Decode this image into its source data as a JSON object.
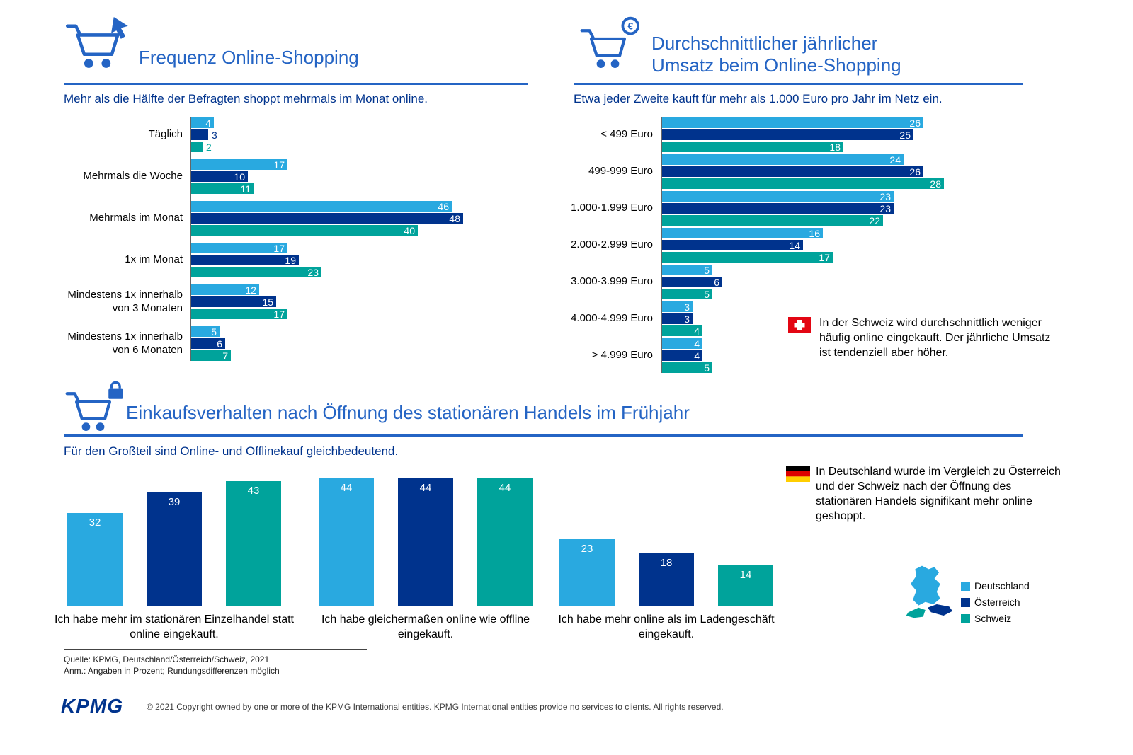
{
  "brand": {
    "logo": "KPMG",
    "copyright": "© 2021 Copyright owned by one or more of the KPMG International entities. KPMG International entities provide no services to clients. All rights reserved."
  },
  "colors": {
    "accent_blue": "#2464C4",
    "deutschland": "#29A9E0",
    "oesterreich": "#00338D",
    "schweiz": "#00A39B"
  },
  "icons": {
    "frequency": "cart-click-icon",
    "revenue": "cart-euro-icon",
    "behavior": "cart-lock-icon",
    "swiss_flag": "swiss-flag-icon",
    "german_flag": "german-flag-icon",
    "map": "dach-map"
  },
  "legend": {
    "items": [
      {
        "label": "Deutschland",
        "color": "#29A9E0"
      },
      {
        "label": "Österreich",
        "color": "#00338D"
      },
      {
        "label": "Schweiz",
        "color": "#00A39B"
      }
    ]
  },
  "sections": {
    "frequency": {
      "title": "Frequenz Online-Shopping",
      "subtitle": "Mehr als die Hälfte der Befragten shoppt mehrmals im Monat online."
    },
    "revenue": {
      "title_line1": "Durchschnittlicher jährlicher",
      "title_line2": "Umsatz beim Online-Shopping",
      "subtitle": "Etwa jeder Zweite kauft für mehr als 1.000 Euro pro Jahr im Netz ein.",
      "note": "In der Schweiz wird durchschnittlich weniger häufig online eingekauft. Der jährliche Umsatz ist tendenziell aber höher."
    },
    "behavior": {
      "title": "Einkaufsverhalten nach Öffnung des stationären Handels im Frühjahr",
      "subtitle": "Für den Großteil sind Online- und Offlinekauf gleichbedeutend.",
      "note": "In Deutschland wurde im Vergleich zu Österreich und der Schweiz nach der Öffnung des stationären Handels signifikant mehr online geshoppt."
    }
  },
  "footnotes": [
    "Quelle: KPMG, Deutschland/Österreich/Schweiz, 2021",
    "Anm.: Angaben in Prozent; Rundungsdifferenzen möglich"
  ],
  "chart_data": [
    {
      "id": "frequency",
      "type": "bar",
      "orientation": "horizontal",
      "title": "Frequenz Online-Shopping",
      "unit": "percent",
      "xlim": [
        0,
        50
      ],
      "categories": [
        "Täglich",
        "Mehrmals die Woche",
        "Mehrmals im Monat",
        "1x im Monat",
        "Mindestens 1x innerhalb von 3 Monaten",
        "Mindestens 1x innerhalb von 6 Monaten"
      ],
      "series": [
        {
          "name": "Deutschland",
          "key": "deutschland",
          "color": "#29A9E0",
          "values": [
            4,
            17,
            46,
            17,
            12,
            5
          ]
        },
        {
          "name": "Österreich",
          "key": "oesterreich",
          "color": "#00338D",
          "values": [
            3,
            10,
            48,
            19,
            15,
            6
          ]
        },
        {
          "name": "Schweiz",
          "key": "schweiz",
          "color": "#00A39B",
          "values": [
            2,
            11,
            40,
            23,
            17,
            7
          ]
        }
      ]
    },
    {
      "id": "revenue",
      "type": "bar",
      "orientation": "horizontal",
      "title": "Durchschnittlicher jährlicher Umsatz beim Online-Shopping",
      "unit": "percent",
      "xlim": [
        0,
        30
      ],
      "categories": [
        "< 499 Euro",
        "499-999 Euro",
        "1.000-1.999 Euro",
        "2.000-2.999 Euro",
        "3.000-3.999 Euro",
        "4.000-4.999 Euro",
        "> 4.999 Euro"
      ],
      "series": [
        {
          "name": "Deutschland",
          "key": "deutschland",
          "color": "#29A9E0",
          "values": [
            26,
            24,
            23,
            16,
            5,
            3,
            4
          ]
        },
        {
          "name": "Österreich",
          "key": "oesterreich",
          "color": "#00338D",
          "values": [
            25,
            26,
            23,
            14,
            6,
            3,
            4
          ]
        },
        {
          "name": "Schweiz",
          "key": "schweiz",
          "color": "#00A39B",
          "values": [
            18,
            28,
            22,
            17,
            5,
            4,
            5
          ]
        }
      ]
    },
    {
      "id": "behavior",
      "type": "bar",
      "orientation": "vertical",
      "title": "Einkaufsverhalten nach Öffnung des stationären Handels im Frühjahr",
      "unit": "percent",
      "ylim": [
        0,
        50
      ],
      "categories": [
        "Ich habe mehr im stationären Einzelhandel statt online eingekauft.",
        "Ich habe gleichermaßen online wie offline eingekauft.",
        "Ich habe mehr online als im Ladengeschäft eingekauft."
      ],
      "series": [
        {
          "name": "Deutschland",
          "key": "deutschland",
          "color": "#29A9E0",
          "values": [
            32,
            44,
            23
          ]
        },
        {
          "name": "Österreich",
          "key": "oesterreich",
          "color": "#00338D",
          "values": [
            39,
            44,
            18
          ]
        },
        {
          "name": "Schweiz",
          "key": "schweiz",
          "color": "#00A39B",
          "values": [
            43,
            44,
            14
          ]
        }
      ]
    }
  ]
}
